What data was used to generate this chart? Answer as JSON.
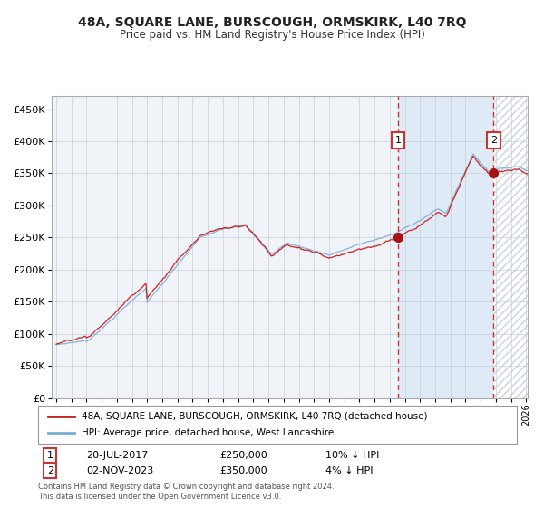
{
  "title": "48A, SQUARE LANE, BURSCOUGH, ORMSKIRK, L40 7RQ",
  "subtitle": "Price paid vs. HM Land Registry's House Price Index (HPI)",
  "legend_line1": "48A, SQUARE LANE, BURSCOUGH, ORMSKIRK, L40 7RQ (detached house)",
  "legend_line2": "HPI: Average price, detached house, West Lancashire",
  "annotation1_label": "1",
  "annotation1_date": "20-JUL-2017",
  "annotation1_price": "£250,000",
  "annotation1_hpi": "10% ↓ HPI",
  "annotation2_label": "2",
  "annotation2_date": "02-NOV-2023",
  "annotation2_price": "£350,000",
  "annotation2_hpi": "4% ↓ HPI",
  "footer": "Contains HM Land Registry data © Crown copyright and database right 2024.\nThis data is licensed under the Open Government Licence v3.0.",
  "hpi_color": "#7aadd4",
  "price_color": "#cc2222",
  "marker_color": "#aa1111",
  "dashed_vline_color": "#cc3333",
  "bg_main_color": "#f0f4f8",
  "bg_highlight_color": "#deeaf5",
  "bg_hatch_color": "#e8eef5",
  "grid_color": "#c8d0d8",
  "ylim": [
    0,
    470000
  ],
  "yticks": [
    0,
    50000,
    100000,
    150000,
    200000,
    250000,
    300000,
    350000,
    400000,
    450000
  ],
  "start_year": 1995,
  "end_year": 2026,
  "sale1_year": 2017.55,
  "sale1_price": 250000,
  "sale2_year": 2023.84,
  "sale2_price": 350000
}
